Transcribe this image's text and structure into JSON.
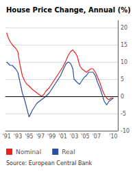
{
  "chart_data": {
    "type": "line",
    "title": "House Price Change, Annual (%)",
    "annotations": [
      "Source: European Central Bank"
    ],
    "x": [
      1991.0,
      1991.3,
      1991.6,
      1992.0,
      1992.3,
      1992.6,
      1993.0,
      1993.4,
      1993.8,
      1994.2,
      1994.6,
      1995.0,
      1995.3,
      1995.6,
      1996.0,
      1996.4,
      1996.8,
      1997.2,
      1997.6,
      1998.0,
      1998.3,
      1998.6,
      1999.0,
      1999.4,
      1999.8,
      2000.2,
      2000.6,
      2001.0,
      2001.3,
      2001.6,
      2002.0,
      2002.4,
      2002.8,
      2003.0,
      2003.3,
      2003.6,
      2004.0,
      2004.4,
      2004.8,
      2005.2,
      2005.6,
      2006.0,
      2006.4,
      2006.8,
      2007.2,
      2007.6,
      2008.0,
      2008.4,
      2008.8,
      2009.2,
      2009.6,
      2010.0
    ],
    "series": [
      {
        "name": "Nominal",
        "color": "#e8231e",
        "values": [
          18.5,
          17.0,
          16.0,
          15.0,
          14.5,
          14.0,
          13.0,
          9.0,
          6.0,
          4.5,
          3.5,
          3.0,
          2.5,
          2.0,
          1.5,
          1.0,
          0.5,
          0.0,
          0.5,
          1.5,
          2.0,
          2.5,
          3.5,
          4.5,
          5.5,
          6.5,
          7.5,
          8.5,
          9.5,
          10.5,
          12.0,
          13.0,
          13.5,
          13.0,
          12.5,
          11.5,
          9.0,
          8.0,
          7.5,
          7.0,
          7.5,
          8.0,
          8.0,
          7.0,
          5.5,
          4.0,
          2.0,
          0.5,
          -0.5,
          -1.0,
          -0.5,
          -0.5
        ]
      },
      {
        "name": "Real",
        "color": "#2a4fa0",
        "values": [
          10.0,
          9.5,
          9.0,
          9.0,
          8.5,
          8.0,
          7.0,
          4.0,
          1.0,
          -1.0,
          -3.5,
          -6.0,
          -5.0,
          -4.0,
          -3.0,
          -2.0,
          -1.5,
          -1.0,
          -0.5,
          0.0,
          0.5,
          1.0,
          2.0,
          3.0,
          4.0,
          5.0,
          6.0,
          7.5,
          8.5,
          9.5,
          10.0,
          9.5,
          8.0,
          5.0,
          4.5,
          4.0,
          3.5,
          4.5,
          5.5,
          6.0,
          7.0,
          7.0,
          7.0,
          6.0,
          4.0,
          2.5,
          0.5,
          -1.5,
          -2.5,
          -1.5,
          -1.0,
          -0.5
        ]
      }
    ],
    "xlim": [
      1990.8,
      2010.8
    ],
    "xticks": [
      {
        "value": 1991,
        "label": "'91"
      },
      {
        "value": 1993,
        "label": "'93"
      },
      {
        "value": 1995,
        "label": "'95"
      },
      {
        "value": 1997,
        "label": "'97"
      },
      {
        "value": 1999,
        "label": "'99"
      },
      {
        "value": 2001,
        "label": "'01"
      },
      {
        "value": 2003,
        "label": "'03"
      },
      {
        "value": 2005,
        "label": "'05"
      },
      {
        "value": 2007,
        "label": "'07"
      },
      {
        "value": 2010,
        "label": "'10"
      }
    ],
    "ylim": [
      -10,
      22
    ],
    "yticks": [
      -10,
      -5,
      0,
      5,
      10,
      15,
      20
    ],
    "grid": true,
    "legend": "lower left"
  }
}
